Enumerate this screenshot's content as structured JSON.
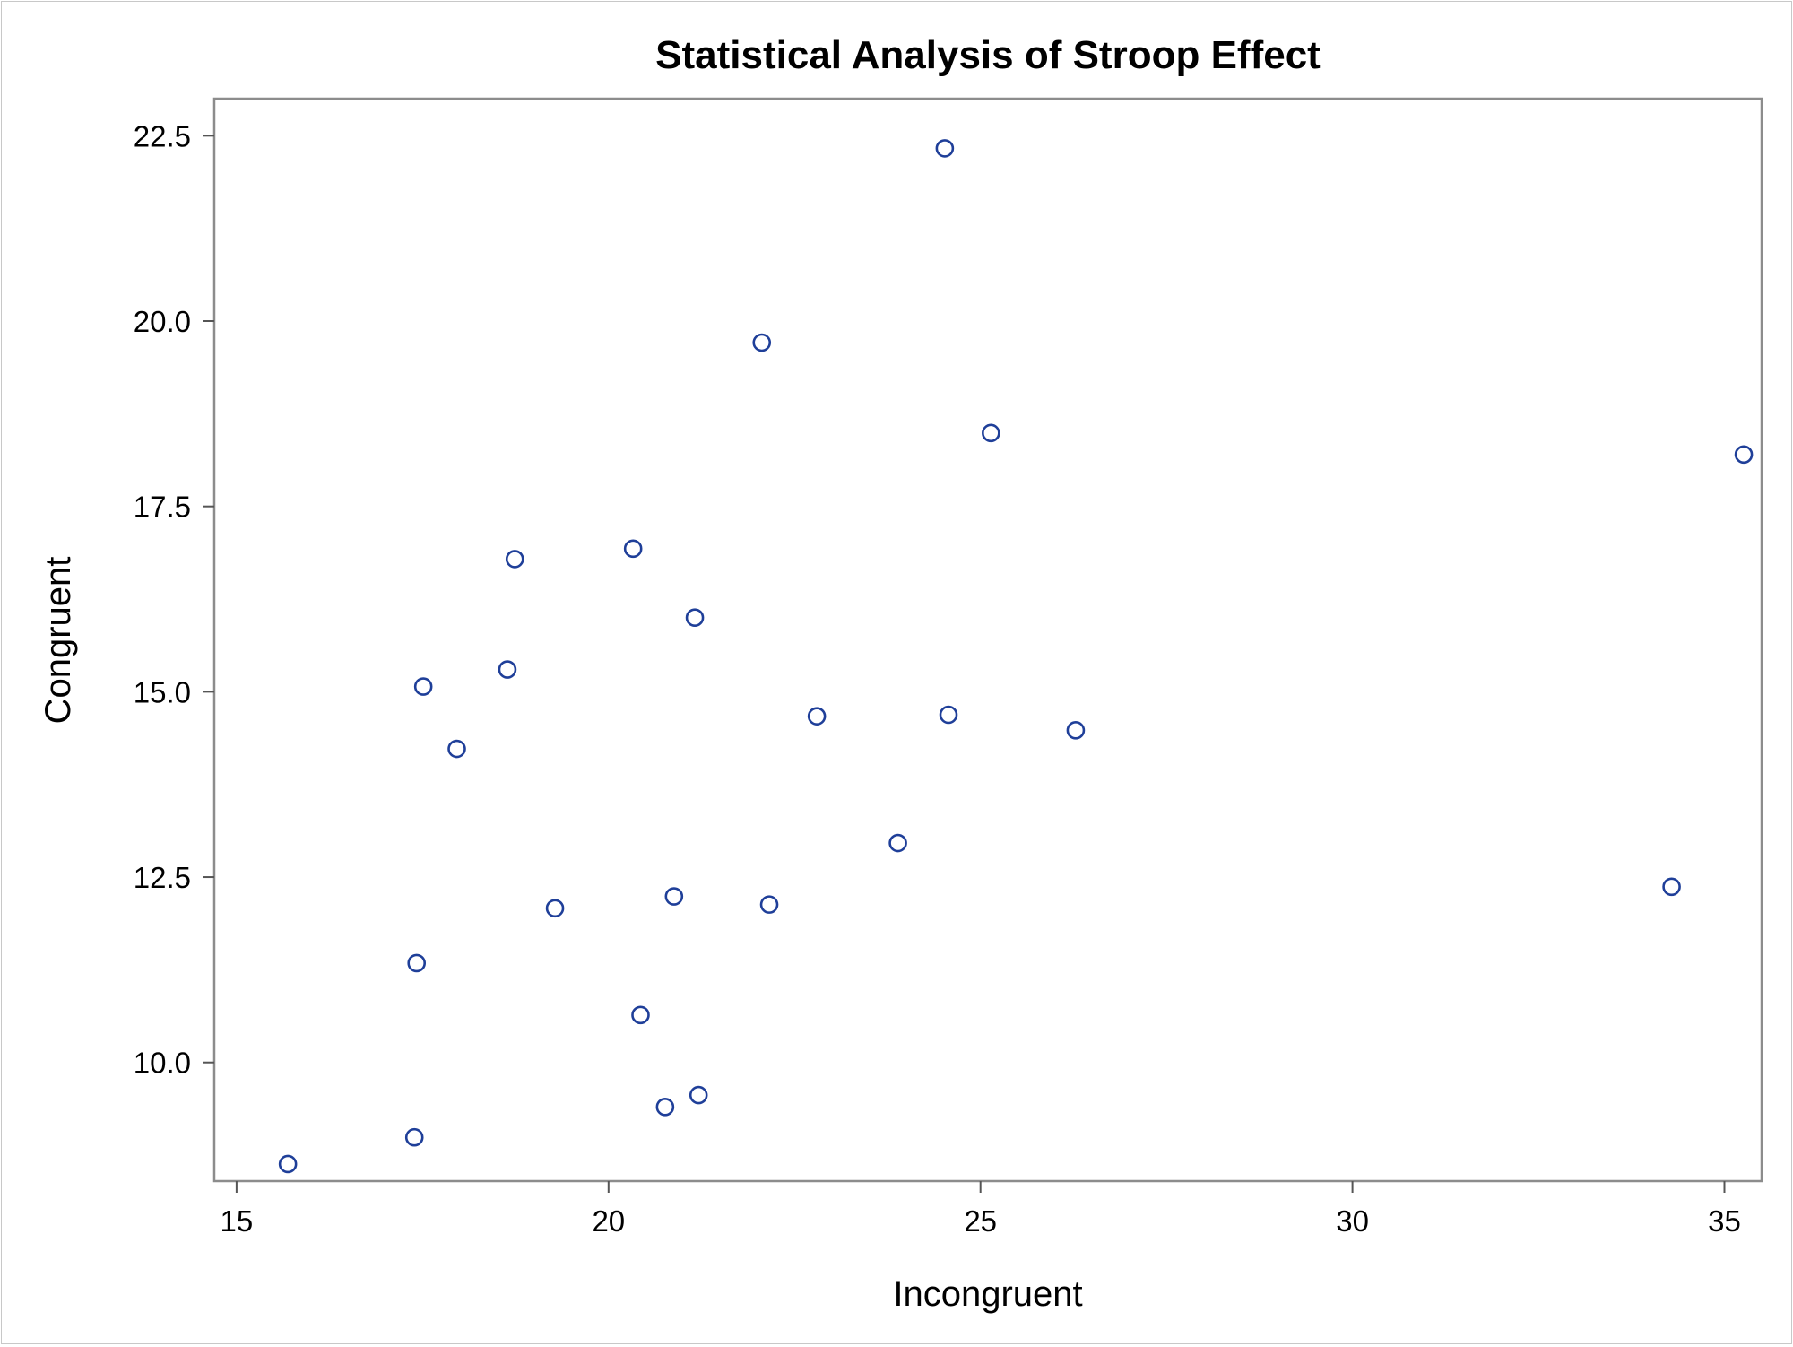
{
  "chart_data": {
    "type": "scatter",
    "title": "Statistical Analysis of Stroop Effect",
    "xlabel": "Incongruent",
    "ylabel": "Congruent",
    "xlim": [
      14.7,
      35.5
    ],
    "ylim": [
      8.4,
      23.0
    ],
    "xticks": [
      15,
      20,
      25,
      30,
      35
    ],
    "xtick_labels": [
      "15",
      "20",
      "25",
      "30",
      "35"
    ],
    "yticks": [
      10.0,
      12.5,
      15.0,
      17.5,
      20.0,
      22.5
    ],
    "ytick_labels": [
      "10.0",
      "12.5",
      "15.0",
      "17.5",
      "20.0",
      "22.5"
    ],
    "grid": false,
    "marker_color": "#1f3f99",
    "series": [
      {
        "points": [
          [
            15.69,
            8.63
          ],
          [
            17.39,
            8.99
          ],
          [
            17.42,
            11.34
          ],
          [
            17.51,
            15.07
          ],
          [
            17.96,
            14.23
          ],
          [
            18.64,
            15.3
          ],
          [
            18.74,
            16.79
          ],
          [
            19.28,
            12.08
          ],
          [
            20.33,
            16.93
          ],
          [
            20.43,
            10.64
          ],
          [
            20.76,
            9.4
          ],
          [
            20.88,
            12.24
          ],
          [
            21.16,
            16.0
          ],
          [
            21.21,
            9.56
          ],
          [
            22.06,
            19.71
          ],
          [
            22.16,
            12.13
          ],
          [
            22.8,
            14.67
          ],
          [
            23.89,
            12.96
          ],
          [
            24.52,
            22.33
          ],
          [
            24.57,
            14.69
          ],
          [
            25.14,
            18.49
          ],
          [
            26.28,
            14.48
          ],
          [
            34.29,
            12.37
          ],
          [
            35.26,
            18.2
          ]
        ]
      }
    ]
  }
}
